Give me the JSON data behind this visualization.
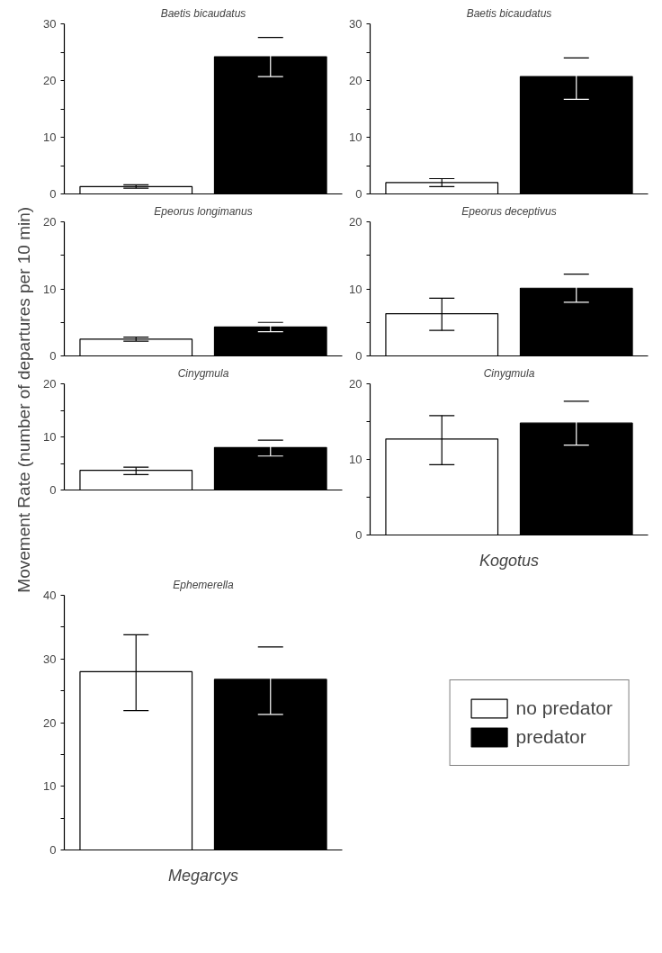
{
  "chart_data": [
    {
      "type": "bar",
      "title": "Baetis bicaudatus",
      "ylabel": "Movement Rate (number of departures per 10 min)",
      "categories": [
        null
      ],
      "ylim": [
        0,
        30
      ],
      "yticks": [
        0,
        {
          "value": 5,
          "label": null
        },
        10,
        {
          "value": 15,
          "label": null
        },
        20,
        {
          "value": 25,
          "label": null
        },
        30
      ],
      "grid": false,
      "series": [
        {
          "color": "#ffffff",
          "values": [
            1.3
          ],
          "errors": [
            [
              1.0,
              1.6
            ]
          ]
        },
        {
          "color": "#000000",
          "values": [
            24.2
          ],
          "errors": [
            [
              20.7,
              27.6
            ]
          ]
        }
      ]
    },
    {
      "type": "bar",
      "title": "Baetis bicaudatus",
      "categories": [
        null
      ],
      "ylim": [
        0,
        30
      ],
      "yticks": [
        0,
        {
          "value": 5,
          "label": null
        },
        10,
        {
          "value": 15,
          "label": null
        },
        20,
        {
          "value": 25,
          "label": null
        },
        30
      ],
      "grid": false,
      "series": [
        {
          "color": "#ffffff",
          "values": [
            2.0
          ],
          "errors": [
            [
              1.3,
              2.7
            ]
          ]
        },
        {
          "color": "#000000",
          "values": [
            20.7
          ],
          "errors": [
            [
              16.7,
              24.0
            ]
          ]
        }
      ]
    },
    {
      "type": "bar",
      "title": "Epeorus longimanus",
      "categories": [
        null
      ],
      "ylim": [
        0,
        20
      ],
      "yticks": [
        0,
        {
          "value": 5,
          "label": null
        },
        10,
        {
          "value": 15,
          "label": null
        },
        20
      ],
      "grid": false,
      "series": [
        {
          "color": "#ffffff",
          "values": [
            2.5
          ],
          "errors": [
            [
              2.2,
              2.8
            ]
          ]
        },
        {
          "color": "#000000",
          "values": [
            4.3
          ],
          "errors": [
            [
              3.6,
              5.0
            ]
          ]
        }
      ]
    },
    {
      "type": "bar",
      "title": "Epeorus deceptivus",
      "categories": [
        null
      ],
      "ylim": [
        0,
        20
      ],
      "yticks": [
        0,
        {
          "value": 5,
          "label": null
        },
        10,
        {
          "value": 15,
          "label": null
        },
        20
      ],
      "grid": false,
      "series": [
        {
          "color": "#ffffff",
          "values": [
            6.3
          ],
          "errors": [
            [
              3.8,
              8.6
            ]
          ]
        },
        {
          "color": "#000000",
          "values": [
            10.1
          ],
          "errors": [
            [
              8.0,
              12.2
            ]
          ]
        }
      ]
    },
    {
      "type": "bar",
      "title": "Cinygmula",
      "categories": [
        null
      ],
      "ylim": [
        0,
        20
      ],
      "yticks": [
        0,
        {
          "value": 5,
          "label": null
        },
        10,
        {
          "value": 15,
          "label": null
        },
        20
      ],
      "grid": false,
      "series": [
        {
          "color": "#ffffff",
          "values": [
            3.7
          ],
          "errors": [
            [
              2.9,
              4.3
            ]
          ]
        },
        {
          "color": "#000000",
          "values": [
            8.0
          ],
          "errors": [
            [
              6.4,
              9.4
            ]
          ]
        }
      ]
    },
    {
      "type": "bar",
      "title": "Cinygmula",
      "xlabel": "Kogotus",
      "categories": [
        null
      ],
      "ylim": [
        0,
        20
      ],
      "yticks": [
        0,
        {
          "value": 5,
          "label": null
        },
        10,
        {
          "value": 15,
          "label": null
        },
        20
      ],
      "grid": false,
      "series": [
        {
          "color": "#ffffff",
          "values": [
            12.7
          ],
          "errors": [
            [
              9.3,
              15.8
            ]
          ]
        },
        {
          "color": "#000000",
          "values": [
            14.8
          ],
          "errors": [
            [
              11.9,
              17.7
            ]
          ]
        }
      ]
    },
    {
      "type": "bar",
      "title": "Ephemerella",
      "xlabel": "Megarcys",
      "categories": [
        null
      ],
      "ylim": [
        0,
        40
      ],
      "yticks": [
        0,
        {
          "value": 5,
          "label": null
        },
        10,
        {
          "value": 15,
          "label": null
        },
        20,
        {
          "value": 25,
          "label": null
        },
        30,
        {
          "value": 35,
          "label": null
        },
        40
      ],
      "grid": false,
      "legend": "right",
      "series": [
        {
          "name": "no predator",
          "color": "#ffffff",
          "values": [
            28.0
          ],
          "errors": [
            [
              21.9,
              33.8
            ]
          ]
        },
        {
          "name": "predator",
          "color": "#000000",
          "values": [
            26.8
          ],
          "errors": [
            [
              21.3,
              31.9
            ]
          ]
        }
      ]
    }
  ]
}
